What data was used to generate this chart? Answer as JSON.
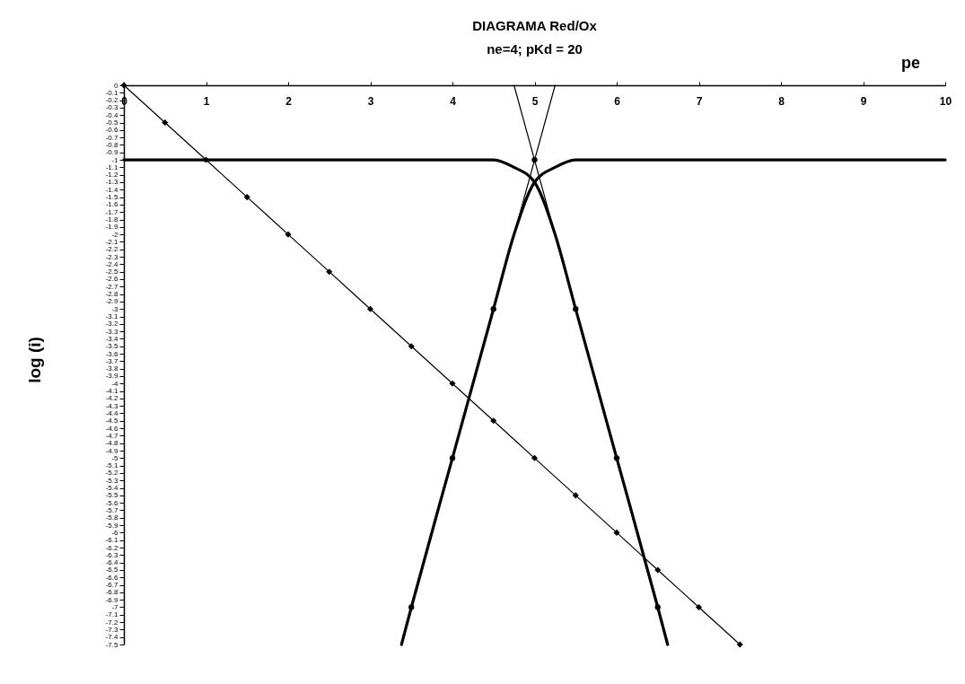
{
  "chart_data": {
    "type": "line",
    "title": "DIAGRAMA Red/Ox",
    "subtitle": "ne=4; pKd = 20",
    "xlabel": "pe",
    "ylabel": "log (i)",
    "xlim": [
      0,
      10
    ],
    "xticks": [
      0,
      1,
      2,
      3,
      4,
      5,
      6,
      7,
      8,
      9,
      10
    ],
    "ylim": [
      -7.5,
      0
    ],
    "yticks": [
      0,
      -0.1,
      -0.2,
      -0.3,
      -0.4,
      -0.5,
      -0.6,
      -0.7,
      -0.8,
      -0.9,
      -1,
      -1.1,
      -1.2,
      -1.3,
      -1.4,
      -1.5,
      -1.6,
      -1.7,
      -1.8,
      -1.9,
      -2,
      -2.1,
      -2.2,
      -2.3,
      -2.4,
      -2.5,
      -2.6,
      -2.7,
      -2.8,
      -2.9,
      -3,
      -3.1,
      -3.2,
      -3.3,
      -3.4,
      -3.5,
      -3.6,
      -3.7,
      -3.8,
      -3.9,
      -4,
      -4.1,
      -4.2,
      -4.3,
      -4.4,
      -4.5,
      -4.6,
      -4.7,
      -4.8,
      -4.9,
      -5,
      -5.1,
      -5.2,
      -5.3,
      -5.4,
      -5.5,
      -5.6,
      -5.7,
      -5.8,
      -5.9,
      -6,
      -6.1,
      -6.2,
      -6.3,
      -6.4,
      -6.5,
      -6.6,
      -6.7,
      -6.8,
      -6.9,
      -7,
      -7.1,
      -7.2,
      -7.3,
      -7.4,
      -7.5
    ],
    "series": [
      {
        "color": "#000000",
        "marker": "diamond",
        "x": [
          0,
          0.5,
          1,
          1.5,
          2,
          2.5,
          3,
          3.5,
          4,
          4.5,
          5,
          5.5,
          6,
          6.5,
          7,
          7.5
        ],
        "values": [
          0,
          -0.5,
          -1,
          -1.5,
          -2,
          -2.5,
          -3,
          -3.5,
          -4,
          -4.5,
          -5,
          -5.5,
          -6,
          -6.5,
          -7,
          -7.5
        ]
      },
      {
        "color": "#000000",
        "x": [
          0,
          0.5,
          1,
          1.5,
          2,
          2.5,
          3,
          3.5,
          4,
          4.5,
          4.75,
          5,
          5.25,
          5.5,
          6,
          6.5,
          6.62
        ],
        "values": [
          -1,
          -1,
          -1,
          -1,
          -1,
          -1,
          -1,
          -1,
          -1,
          -1,
          -1.1,
          -1.3,
          -2,
          -3,
          -5,
          -7,
          -7.5
        ]
      },
      {
        "color": "#000000",
        "x": [
          3.38,
          3.5,
          4,
          4.5,
          4.75,
          5,
          5.25,
          5.5,
          6,
          6.5,
          7,
          7.5,
          8,
          8.5,
          9,
          9.5,
          10
        ],
        "values": [
          -7.5,
          -7,
          -5,
          -3,
          -2,
          -1.3,
          -1.1,
          -1,
          -1,
          -1,
          -1,
          -1,
          -1,
          -1,
          -1,
          -1,
          -1
        ]
      },
      {
        "color": "#000000",
        "x": [
          4.75,
          6.62
        ],
        "values": [
          0,
          -7.5
        ]
      },
      {
        "color": "#000000",
        "x": [
          3.38,
          5.25
        ],
        "values": [
          -7.5,
          0
        ]
      },
      {
        "type": "scatter",
        "color": "#000000",
        "marker": "circle",
        "x": [
          3.5,
          4,
          4.5,
          5,
          5.5,
          6,
          6.5
        ],
        "values": [
          -7,
          -5,
          -3,
          -1,
          -3,
          -5,
          -7
        ]
      }
    ]
  }
}
